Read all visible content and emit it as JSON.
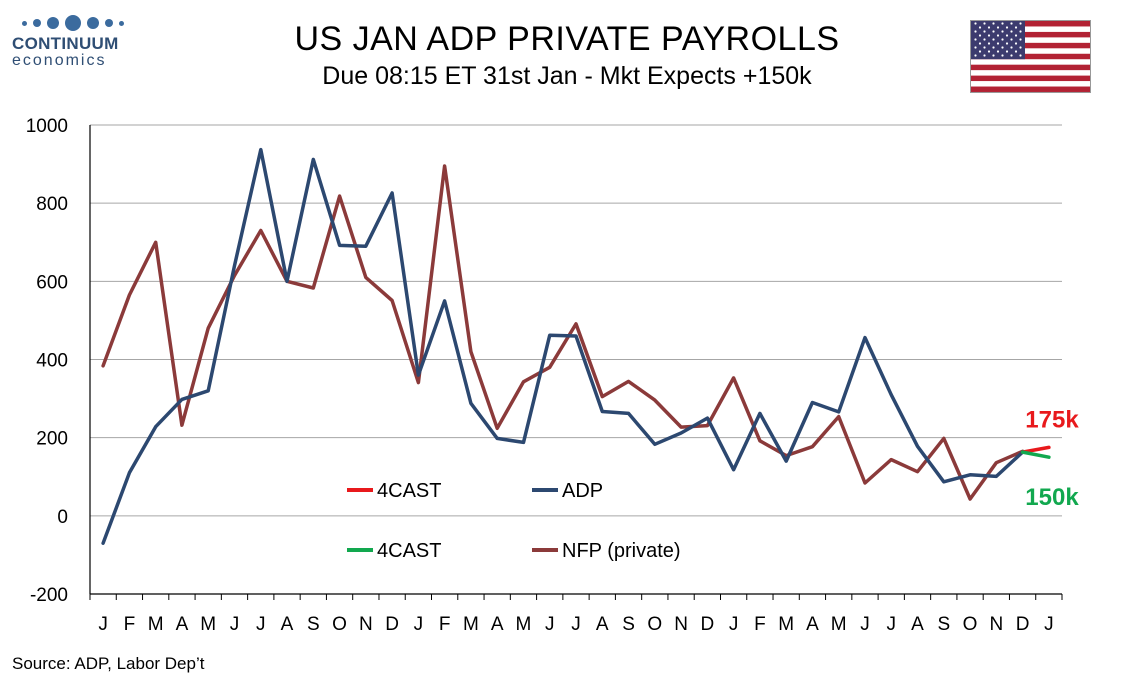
{
  "header": {
    "title": "US JAN ADP PRIVATE PAYROLLS",
    "subtitle": "Due 08:15 ET 31st Jan - Mkt Expects +150k"
  },
  "logo": {
    "line1": "CONTINUUM",
    "line2": "economics"
  },
  "flag": {
    "name": "us-flag-icon"
  },
  "source": "Source: ADP, Labor Dep’t",
  "colors": {
    "adp": "#2c4870",
    "nfp": "#8b3a3a",
    "cast_red": "#e8191c",
    "cast_green": "#12a84f",
    "grid": "#a6a6a6"
  },
  "chart_data": {
    "type": "line",
    "categories": [
      "J",
      "F",
      "M",
      "A",
      "M",
      "J",
      "J",
      "A",
      "S",
      "O",
      "N",
      "D",
      "J",
      "F",
      "M",
      "A",
      "M",
      "J",
      "J",
      "A",
      "S",
      "O",
      "N",
      "D",
      "J",
      "F",
      "M",
      "A",
      "M",
      "J",
      "J",
      "A",
      "S",
      "O",
      "N",
      "D",
      "J"
    ],
    "ylim": [
      -200,
      1000
    ],
    "yticks": [
      -200,
      0,
      200,
      400,
      600,
      800,
      1000
    ],
    "grid": true,
    "series": [
      {
        "name": "ADP",
        "color": "#2c4870",
        "values": [
          -70,
          110,
          228,
          298,
          320,
          640,
          937,
          600,
          912,
          692,
          690,
          826,
          360,
          550,
          288,
          198,
          188,
          462,
          460,
          267,
          262,
          183,
          212,
          250,
          118,
          262,
          140,
          290,
          266,
          456,
          310,
          178,
          87,
          105,
          101,
          163,
          null
        ]
      },
      {
        "name": "NFP (private)",
        "color": "#8b3a3a",
        "values": [
          384,
          565,
          700,
          232,
          480,
          615,
          730,
          600,
          583,
          818,
          610,
          551,
          341,
          895,
          420,
          224,
          343,
          380,
          491,
          305,
          344,
          296,
          227,
          231,
          353,
          192,
          154,
          177,
          254,
          84,
          144,
          113,
          198,
          43,
          136,
          165,
          null
        ]
      },
      {
        "name": "4CAST",
        "color": "#e8191c",
        "values": [
          null,
          null,
          null,
          null,
          null,
          null,
          null,
          null,
          null,
          null,
          null,
          null,
          null,
          null,
          null,
          null,
          null,
          null,
          null,
          null,
          null,
          null,
          null,
          null,
          null,
          null,
          null,
          null,
          null,
          null,
          null,
          null,
          null,
          null,
          null,
          163,
          175
        ]
      },
      {
        "name": "4CAST",
        "color": "#12a84f",
        "values": [
          null,
          null,
          null,
          null,
          null,
          null,
          null,
          null,
          null,
          null,
          null,
          null,
          null,
          null,
          null,
          null,
          null,
          null,
          null,
          null,
          null,
          null,
          null,
          null,
          null,
          null,
          null,
          null,
          null,
          null,
          null,
          null,
          null,
          null,
          null,
          163,
          150
        ]
      }
    ],
    "annotations": [
      {
        "text": "175k",
        "color": "#e8191c"
      },
      {
        "text": "150k",
        "color": "#12a84f"
      }
    ],
    "legend": [
      {
        "label": "4CAST",
        "color": "#e8191c"
      },
      {
        "label": "ADP",
        "color": "#2c4870"
      },
      {
        "label": "4CAST",
        "color": "#12a84f"
      },
      {
        "label": "NFP (private)",
        "color": "#8b3a3a"
      }
    ]
  }
}
